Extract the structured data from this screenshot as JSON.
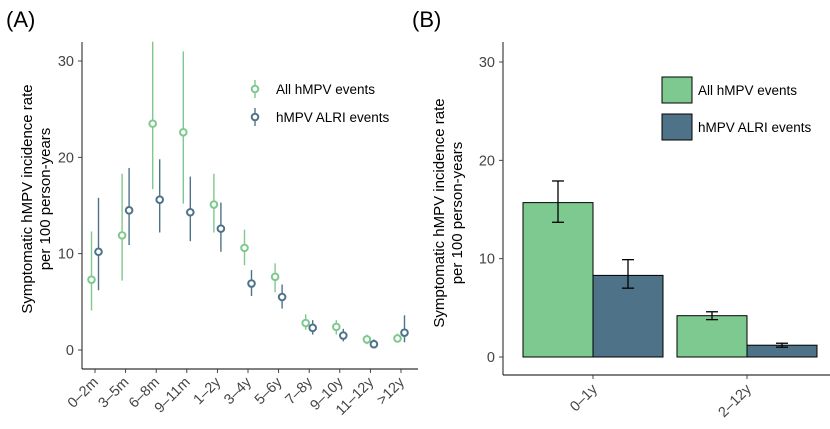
{
  "chart_data": [
    {
      "panel": "(A)",
      "type": "scatter",
      "ylabel": "Symptomatic hMPV incidence rate\nper 100 person-years",
      "ylim": [
        0,
        32
      ],
      "yticks": [
        0,
        10,
        20,
        30
      ],
      "categories": [
        "0–2m",
        "3–5m",
        "6–8m",
        "9–11m",
        "1–2y",
        "3–4y",
        "5–6y",
        "7–8y",
        "9–10y",
        "11–12y",
        ">12y"
      ],
      "series": [
        {
          "name": "All hMPV events",
          "color": "#7ec98f",
          "values": [
            7.3,
            11.9,
            23.5,
            22.6,
            15.1,
            10.6,
            7.6,
            2.8,
            2.4,
            1.1,
            1.2
          ],
          "lower": [
            4.1,
            7.2,
            16.7,
            15.2,
            12.2,
            8.8,
            6.0,
            2.1,
            1.6,
            0.6,
            0.8
          ],
          "upper": [
            12.3,
            18.3,
            32.0,
            31.0,
            18.3,
            12.5,
            9.0,
            3.7,
            3.1,
            1.6,
            1.7
          ]
        },
        {
          "name": "hMPV ALRI events",
          "color": "#4e7389",
          "values": [
            10.2,
            14.5,
            15.6,
            14.3,
            12.6,
            6.9,
            5.5,
            2.3,
            1.5,
            0.6,
            1.8
          ],
          "lower": [
            6.2,
            10.9,
            12.2,
            11.3,
            10.2,
            5.6,
            4.3,
            1.6,
            0.9,
            0.3,
            0.8
          ],
          "upper": [
            15.8,
            18.9,
            19.8,
            18.0,
            15.3,
            8.3,
            6.8,
            3.1,
            2.2,
            1.1,
            3.6
          ]
        }
      ],
      "legend": [
        "All hMPV events",
        "hMPV ALRI events"
      ],
      "legend_position": "top-right"
    },
    {
      "panel": "(B)",
      "type": "bar",
      "ylabel": "Symptomatic hMPV incidence rate\nper 100 person-years",
      "ylim": [
        0,
        32
      ],
      "yticks": [
        0,
        10,
        20,
        30
      ],
      "categories": [
        "0–1y",
        "2–12y"
      ],
      "series": [
        {
          "name": "All hMPV events",
          "color": "#7ec98f",
          "values": [
            15.7,
            4.2
          ],
          "lower": [
            13.7,
            3.8
          ],
          "upper": [
            17.9,
            4.6
          ]
        },
        {
          "name": "hMPV ALRI events",
          "color": "#4e7389",
          "values": [
            8.3,
            1.2
          ],
          "lower": [
            7.0,
            1.0
          ],
          "upper": [
            9.9,
            1.4
          ]
        }
      ],
      "legend": [
        "All hMPV events",
        "hMPV ALRI events"
      ],
      "legend_position": "top-right"
    }
  ]
}
